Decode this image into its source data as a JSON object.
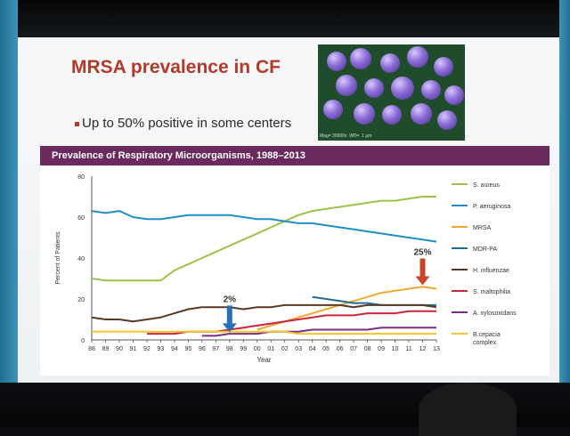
{
  "slide": {
    "title": "MRSA prevalence in CF",
    "bullet": "Up to 50% positive in some centers",
    "photo_caption": "Mag= 30000x  WD=  1 µm"
  },
  "chart_data": {
    "type": "line",
    "title": "Prevalence of Respiratory Microorganisms, 1988–2013",
    "xlabel": "Year",
    "ylabel": "Percent of Patients",
    "ylim": [
      0,
      80
    ],
    "yticks": [
      0,
      20,
      40,
      60,
      80
    ],
    "grid": false,
    "legend_position": "right",
    "x": [
      "88",
      "89",
      "90",
      "91",
      "92",
      "93",
      "94",
      "95",
      "96",
      "97",
      "98",
      "99",
      "00",
      "01",
      "02",
      "03",
      "04",
      "05",
      "06",
      "07",
      "08",
      "09",
      "10",
      "11",
      "12",
      "13"
    ],
    "series": [
      {
        "name": "S. aureus",
        "color": "#9cc24a",
        "values": [
          30,
          29,
          29,
          29,
          29,
          29,
          34,
          37,
          40,
          43,
          46,
          49,
          52,
          55,
          58,
          61,
          63,
          64,
          65,
          66,
          67,
          68,
          68,
          69,
          70,
          70
        ]
      },
      {
        "name": "P. aeruginosa",
        "color": "#1f8fc4",
        "values": [
          63,
          62,
          63,
          60,
          59,
          59,
          60,
          61,
          61,
          61,
          61,
          60,
          59,
          59,
          58,
          57,
          57,
          56,
          55,
          54,
          53,
          52,
          51,
          50,
          49,
          48
        ]
      },
      {
        "name": "MRSA",
        "color": "#f0a830",
        "values": [
          null,
          null,
          null,
          null,
          null,
          null,
          null,
          null,
          null,
          null,
          null,
          null,
          5,
          7,
          9,
          11,
          13,
          15,
          17,
          19,
          21,
          23,
          24,
          25,
          26,
          25
        ]
      },
      {
        "name": "MDR-PA",
        "color": "#1c6f8c",
        "values": [
          null,
          null,
          null,
          null,
          null,
          null,
          null,
          null,
          null,
          null,
          null,
          null,
          null,
          null,
          null,
          null,
          21,
          20,
          19,
          18,
          18,
          17,
          17,
          17,
          17,
          17
        ]
      },
      {
        "name": "H. influenzae",
        "color": "#5a3a26",
        "values": [
          11,
          10,
          10,
          9,
          10,
          11,
          13,
          15,
          16,
          16,
          16,
          15,
          16,
          16,
          17,
          17,
          17,
          17,
          17,
          16,
          17,
          17,
          17,
          17,
          17,
          16
        ]
      },
      {
        "name": "S. maltophilia",
        "color": "#c8273a",
        "values": [
          null,
          null,
          null,
          null,
          3,
          3,
          3,
          4,
          4,
          4,
          5,
          6,
          7,
          8,
          9,
          10,
          11,
          12,
          12,
          12,
          13,
          13,
          13,
          14,
          14,
          14
        ]
      },
      {
        "name": "A. xylosoxidans",
        "color": "#7a2e86",
        "values": [
          null,
          null,
          null,
          null,
          null,
          null,
          null,
          null,
          2,
          2,
          3,
          3,
          3,
          4,
          4,
          4,
          5,
          5,
          5,
          5,
          5,
          6,
          6,
          6,
          6,
          6
        ]
      },
      {
        "name": "B.cepacia complex",
        "color": "#f2c52a",
        "values": [
          4,
          4,
          4,
          4,
          4,
          4,
          4,
          4,
          4,
          4,
          4,
          4,
          4,
          4,
          4,
          3,
          3,
          3,
          3,
          3,
          3,
          3,
          3,
          3,
          3,
          3
        ]
      }
    ],
    "annotations": [
      {
        "text": "2%",
        "x": "98",
        "y": 2,
        "color": "#2a6fb5"
      },
      {
        "text": "25%",
        "x": "12",
        "y": 25,
        "color": "#c8452a"
      }
    ]
  }
}
